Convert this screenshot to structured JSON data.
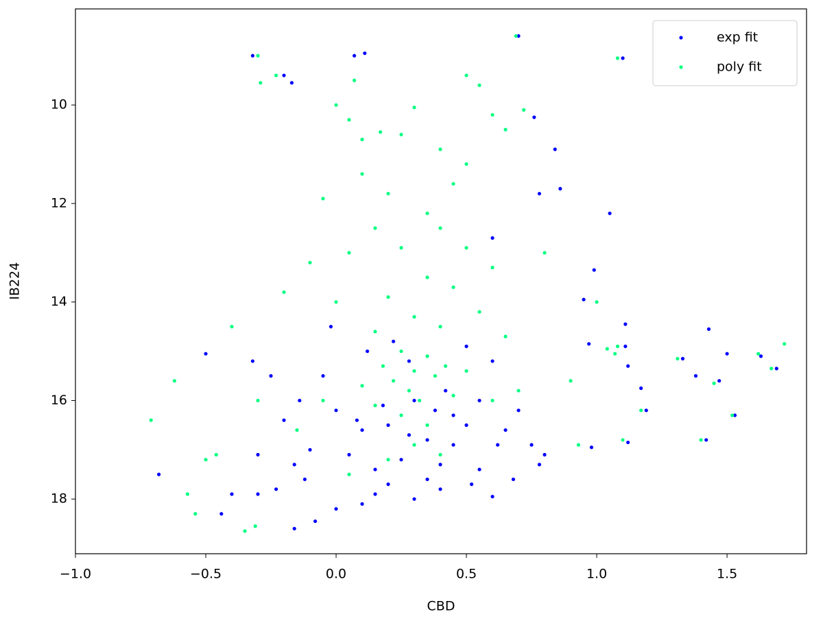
{
  "chart_data": {
    "type": "scatter",
    "xlabel": "CBD",
    "ylabel": "IB224",
    "xlim": [
      -1.0,
      1.805
    ],
    "ylim": [
      19.11,
      8.05
    ],
    "xticks": [
      {
        "value": -1.0,
        "label": "−1.0"
      },
      {
        "value": -0.5,
        "label": "−0.5"
      },
      {
        "value": 0.0,
        "label": "0.0"
      },
      {
        "value": 0.5,
        "label": "0.5"
      },
      {
        "value": 1.0,
        "label": "1.0"
      },
      {
        "value": 1.5,
        "label": "1.5"
      }
    ],
    "yticks": [
      10,
      12,
      14,
      16,
      18
    ],
    "grid": false,
    "legend": "upper right",
    "series": [
      {
        "name": "exp fit",
        "color": "#0000ff",
        "x": [
          -0.68,
          -0.5,
          -0.32,
          -0.2,
          -0.17,
          -0.44,
          -0.4,
          -0.32,
          -0.16,
          -0.25,
          1.1,
          1.05,
          0.7,
          0.76,
          0.07,
          0.11,
          1.11,
          1.11,
          1.12,
          1.19,
          1.17,
          1.12,
          1.43,
          1.42,
          1.33,
          1.38,
          1.47,
          1.5,
          1.53,
          1.63,
          1.69,
          0.98,
          0.99,
          0.97,
          0.95,
          0.84,
          0.86,
          0.78,
          0.78,
          0.6,
          0.52,
          -0.1,
          -0.14,
          0.0,
          0.1,
          -0.08,
          0.3,
          0.4,
          0.2,
          0.6,
          0.2,
          0.25,
          0.35,
          0.45,
          0.1,
          0.0,
          -0.05,
          0.55,
          0.6,
          0.15,
          0.4,
          0.5,
          0.65,
          0.05,
          0.3,
          -0.02,
          0.7,
          0.12,
          0.22,
          0.5,
          -0.3,
          -0.2,
          -0.12,
          0.75,
          0.8,
          0.35,
          0.45,
          0.28,
          0.18,
          0.62,
          -0.3,
          -0.23,
          0.15,
          0.55,
          0.68,
          -0.16,
          0.08,
          0.38,
          0.42,
          0.28
        ],
        "y": [
          17.5,
          15.05,
          9.0,
          9.4,
          9.55,
          18.3,
          17.9,
          15.2,
          18.6,
          15.5,
          9.05,
          12.2,
          8.6,
          10.25,
          9.0,
          8.95,
          14.45,
          14.9,
          15.3,
          16.2,
          15.75,
          16.85,
          14.55,
          16.8,
          15.15,
          15.5,
          15.6,
          15.05,
          16.3,
          15.1,
          15.35,
          16.95,
          13.35,
          14.85,
          13.95,
          10.9,
          11.7,
          11.8,
          17.3,
          17.95,
          17.7,
          17.0,
          16.0,
          18.2,
          18.1,
          18.45,
          18.0,
          17.8,
          17.7,
          12.7,
          16.5,
          17.2,
          16.8,
          16.9,
          16.6,
          16.2,
          15.5,
          16.0,
          15.2,
          17.4,
          17.3,
          16.5,
          16.6,
          17.1,
          16.0,
          14.5,
          16.2,
          15.0,
          14.8,
          14.9,
          17.1,
          16.4,
          17.6,
          16.9,
          17.1,
          17.6,
          16.3,
          16.7,
          16.1,
          16.9,
          17.9,
          17.8,
          17.9,
          17.4,
          17.6,
          17.3,
          16.4,
          16.2,
          15.8,
          15.2
        ]
      },
      {
        "name": "poly fit",
        "color": "#00ff80",
        "x": [
          -0.71,
          -0.62,
          -0.3,
          -0.29,
          -0.23,
          -0.57,
          -0.54,
          -0.35,
          -0.31,
          -0.4,
          -0.5,
          -0.46,
          1.72,
          1.67,
          1.62,
          1.52,
          1.45,
          1.4,
          1.31,
          1.08,
          1.07,
          1.04,
          1.0,
          1.08,
          0.69,
          0.07,
          -0.2,
          0.72,
          0.8,
          0.93,
          1.1,
          1.17,
          0.9,
          0.0,
          0.05,
          0.1,
          0.17,
          0.3,
          0.25,
          0.5,
          0.55,
          0.6,
          0.65,
          0.4,
          0.5,
          0.45,
          0.2,
          0.1,
          -0.05,
          0.35,
          0.15,
          0.4,
          0.5,
          0.25,
          0.05,
          -0.1,
          0.6,
          0.35,
          0.45,
          0.2,
          0.0,
          0.55,
          0.3,
          0.4,
          0.15,
          0.65,
          0.25,
          0.35,
          0.3,
          0.38,
          0.22,
          0.28,
          0.42,
          0.18,
          0.32,
          0.25,
          0.35,
          0.45,
          0.15,
          0.5,
          0.1,
          -0.05,
          0.6,
          0.3,
          0.2,
          0.4,
          -0.15,
          0.7,
          -0.3,
          0.05
        ],
        "y": [
          16.4,
          15.6,
          9.0,
          9.55,
          9.4,
          17.9,
          18.3,
          18.65,
          18.55,
          14.5,
          17.2,
          17.1,
          14.85,
          15.35,
          15.05,
          16.3,
          15.65,
          16.8,
          15.15,
          14.9,
          15.05,
          14.95,
          14.0,
          9.05,
          8.6,
          9.5,
          13.8,
          10.1,
          13.0,
          16.9,
          16.8,
          16.2,
          15.6,
          10.0,
          10.3,
          10.7,
          10.55,
          10.05,
          10.6,
          9.4,
          9.6,
          10.2,
          10.5,
          10.9,
          11.2,
          11.6,
          11.8,
          11.4,
          11.9,
          12.2,
          12.5,
          12.5,
          12.9,
          12.9,
          13.0,
          13.2,
          13.3,
          13.5,
          13.7,
          13.9,
          14.0,
          14.2,
          14.3,
          14.5,
          14.6,
          14.7,
          15.0,
          15.1,
          15.4,
          15.5,
          15.6,
          15.8,
          15.3,
          15.3,
          16.0,
          16.3,
          16.5,
          15.9,
          16.1,
          15.4,
          15.7,
          16.0,
          16.0,
          16.9,
          17.2,
          17.1,
          16.6,
          15.8,
          16.0,
          17.5
        ]
      }
    ]
  }
}
